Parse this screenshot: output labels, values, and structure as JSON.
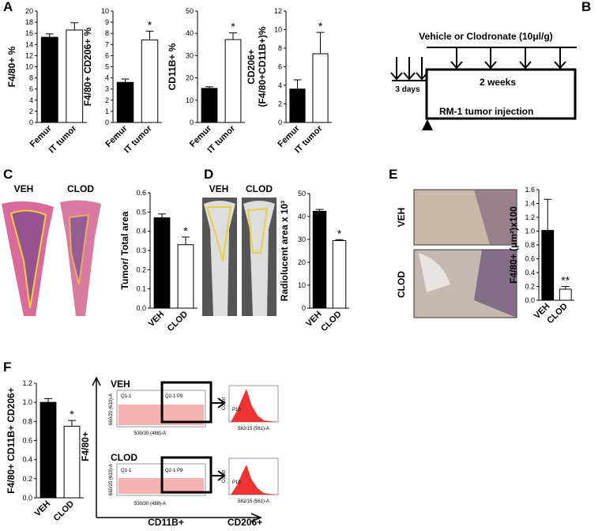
{
  "chart_data": [
    {
      "type": "bar",
      "ylabel": "F4/80+ %",
      "categories": [
        "Femur",
        "IT tumor"
      ],
      "values": [
        15.3,
        16.6
      ],
      "errors": [
        0.6,
        1.3
      ],
      "colors": [
        "#000000",
        "#ffffff"
      ],
      "ylim": [
        0,
        20
      ],
      "yticks": [
        0,
        2,
        4,
        6,
        8,
        10,
        12,
        14,
        16,
        18,
        20
      ]
    },
    {
      "type": "bar",
      "ylabel": "F4/80+ CD206+ %",
      "categories": [
        "Femur",
        "IT tumor"
      ],
      "values": [
        3.6,
        7.4
      ],
      "errors": [
        0.3,
        0.8
      ],
      "colors": [
        "#000000",
        "#ffffff"
      ],
      "ylim": [
        0,
        10
      ],
      "yticks": [
        0,
        1,
        2,
        3,
        4,
        5,
        6,
        7,
        8,
        9,
        10
      ],
      "annotation": "*"
    },
    {
      "type": "bar",
      "ylabel": "CD11B+ %",
      "categories": [
        "Femur",
        "IT tumor"
      ],
      "values": [
        15.3,
        37.2
      ],
      "errors": [
        0.7,
        3
      ],
      "colors": [
        "#000000",
        "#ffffff"
      ],
      "ylim": [
        0,
        50
      ],
      "yticks": [
        0,
        10,
        20,
        30,
        40,
        50
      ],
      "annotation": "*"
    },
    {
      "type": "bar",
      "ylabel": [
        "CD206+",
        "(F4/80+CD11B+)%"
      ],
      "categories": [
        "Femur",
        "IT tumor"
      ],
      "values": [
        3.6,
        7.4
      ],
      "errors": [
        1,
        2.3
      ],
      "colors": [
        "#000000",
        "#ffffff"
      ],
      "ylim": [
        0,
        12
      ],
      "yticks": [
        0,
        2,
        4,
        6,
        8,
        10,
        12
      ],
      "annotation": "*"
    },
    {
      "type": "bar",
      "ylabel": "Tumor/ Total area",
      "categories": [
        "VEH",
        "CLOD"
      ],
      "values": [
        0.47,
        0.33
      ],
      "errors": [
        0.02,
        0.04
      ],
      "colors": [
        "#000000",
        "#ffffff"
      ],
      "ylim": [
        0,
        0.6
      ],
      "yticks": [
        {
          "value": 0,
          "label": "0.0"
        },
        0.1,
        0.2,
        0.3,
        0.4,
        0.5,
        0.6
      ],
      "annotation": "*"
    },
    {
      "type": "bar",
      "ylabel": "Radiolucent area x 10³",
      "categories": [
        "VEH",
        "CLOD"
      ],
      "values": [
        42.3,
        29.5
      ],
      "errors": [
        0.8,
        0.4
      ],
      "colors": [
        "#000000",
        "#ffffff"
      ],
      "ylim": [
        0,
        50
      ],
      "yticks": [
        0,
        10,
        20,
        30,
        40,
        50
      ],
      "annotation": "*"
    },
    {
      "type": "bar",
      "ylabel": "F4/80+ (μm²)x100",
      "categories": [
        "VEH",
        "CLOD"
      ],
      "values": [
        1.01,
        0.16
      ],
      "errors": [
        0.45,
        0.04
      ],
      "colors": [
        "#000000",
        "#ffffff"
      ],
      "ylim": [
        0,
        1.6
      ],
      "yticks": [
        {
          "value": 0,
          "label": "0.0"
        },
        0.2,
        0.4,
        0.6,
        0.8,
        {
          "value": 1,
          "label": "1.0"
        },
        1.2,
        1.4,
        1.6
      ],
      "annotation": "**"
    },
    {
      "type": "bar",
      "ylabel": "F4/80+ CD11B+ CD206+",
      "categories": [
        "VEH",
        "CLOD"
      ],
      "values": [
        1.0,
        0.75
      ],
      "errors": [
        0.04,
        0.06
      ],
      "colors": [
        "#000000",
        "#ffffff"
      ],
      "ylim": [
        0,
        1.2
      ],
      "yticks": [
        {
          "value": 0,
          "label": "0.0"
        },
        0.2,
        0.4,
        0.6,
        0.8,
        {
          "value": 1,
          "label": "1.0"
        },
        1.2
      ],
      "annotation": "*"
    }
  ],
  "panels": [
    "A",
    "B",
    "C",
    "D",
    "E",
    "F"
  ],
  "diagram": {
    "treatment": "Vehicle or Clodronate (10μl/g)",
    "duration": "2 weeks",
    "pre": "3 days",
    "injection": "RM-1 tumor injection"
  },
  "images": {
    "c": [
      "VEH",
      "CLOD"
    ],
    "d": [
      "VEH",
      "CLOD"
    ],
    "e": [
      "VEH",
      "CLOD"
    ]
  },
  "flow": {
    "groups": [
      "VEH",
      "CLOD"
    ],
    "y_axis": "F4/80+",
    "x_axis": "CD11B+",
    "hist_axis": "CD206+",
    "dot_x": "530/30 (488)-A",
    "dot_y": "660/20 (633)-A",
    "hist_x": "582/15 (561)-A",
    "hist_y": "Count",
    "gates": [
      "Q1-1",
      "Q2-1 P9"
    ],
    "hist_gate": "P10"
  }
}
